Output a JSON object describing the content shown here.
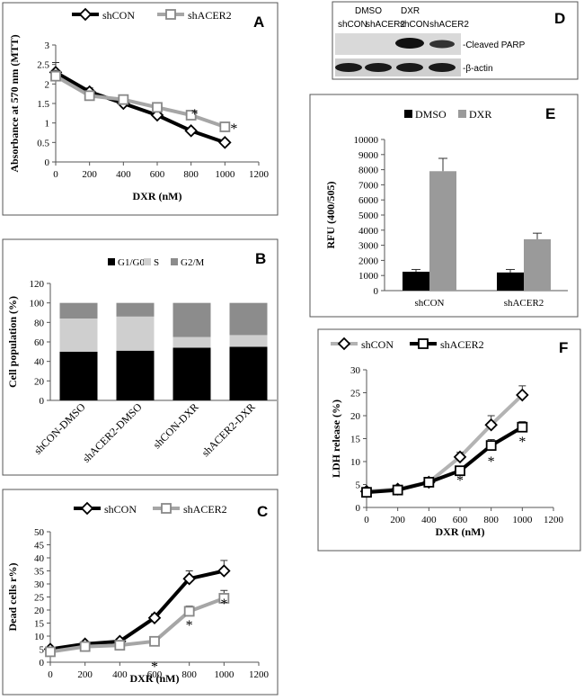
{
  "chart_data": [
    {
      "id": "A",
      "type": "line",
      "panel_label": "A",
      "x": [
        0,
        200,
        400,
        600,
        800,
        1000
      ],
      "series": [
        {
          "name": "shCON",
          "values": [
            2.3,
            1.8,
            1.5,
            1.2,
            0.8,
            0.5
          ],
          "errors": [
            0.25,
            0.1,
            0.07,
            0.05,
            0.04,
            0.03
          ],
          "color": "#000000",
          "marker": "diamond"
        },
        {
          "name": "shACER2",
          "values": [
            2.2,
            1.7,
            1.6,
            1.4,
            1.2,
            0.9
          ],
          "errors": [
            0.15,
            0.1,
            0.07,
            0.05,
            0.04,
            0.03
          ],
          "color": "#a6a6a6",
          "marker": "square"
        }
      ],
      "xlabel": "DXR (nM)",
      "ylabel": "Absorbance at 570 nm (MTT)",
      "xlim": [
        0,
        1200
      ],
      "ylim": [
        0,
        3
      ],
      "xticks": [
        "0",
        "200",
        "400",
        "600",
        "800",
        "1000",
        "1200"
      ],
      "yticks": [
        "0",
        "0.5",
        "1",
        "1.5",
        "2",
        "2.5",
        "3"
      ],
      "significance": [
        {
          "x": 800,
          "text": "*"
        },
        {
          "x": 1000,
          "text": "*"
        }
      ]
    },
    {
      "id": "B",
      "type": "stacked-bar",
      "panel_label": "B",
      "categories": [
        "shCON-DMSO",
        "shACER2-DMSO",
        "shCON-DXR",
        "shACER2-DXR"
      ],
      "series": [
        {
          "name": "G1/G0",
          "values": [
            50,
            51,
            54,
            55
          ],
          "color": "#000000"
        },
        {
          "name": "S",
          "values": [
            34,
            35,
            11,
            12
          ],
          "color": "#cfcfcf"
        },
        {
          "name": "G2/M",
          "values": [
            16,
            14,
            35,
            33
          ],
          "color": "#8c8c8c"
        }
      ],
      "ylabel": "Cell population (%)",
      "ylim": [
        0,
        120
      ],
      "yticks": [
        "0",
        "20",
        "40",
        "60",
        "80",
        "100",
        "120"
      ]
    },
    {
      "id": "C",
      "type": "line",
      "panel_label": "C",
      "x": [
        0,
        200,
        400,
        600,
        800,
        1000
      ],
      "series": [
        {
          "name": "shCON",
          "values": [
            5,
            7,
            8,
            17,
            32,
            35
          ],
          "errors": [
            1,
            1,
            1,
            1.5,
            3,
            4
          ],
          "color": "#000000",
          "marker": "diamond"
        },
        {
          "name": "shACER2",
          "values": [
            4,
            6,
            6.5,
            8,
            19.5,
            24.5
          ],
          "errors": [
            1,
            1,
            1,
            1,
            2,
            3
          ],
          "color": "#a6a6a6",
          "marker": "square"
        }
      ],
      "xlabel": "DXR (nM)",
      "ylabel": "Dead cells r%)",
      "xlim": [
        0,
        1200
      ],
      "ylim": [
        0,
        50
      ],
      "xticks": [
        "0",
        "200",
        "400",
        "600",
        "800",
        "1000",
        "1200"
      ],
      "yticks": [
        "0",
        "5",
        "10",
        "15",
        "20",
        "25",
        "30",
        "35",
        "40",
        "45",
        "50"
      ],
      "significance": [
        {
          "x": 600,
          "text": "*"
        },
        {
          "x": 800,
          "text": "*"
        },
        {
          "x": 1000,
          "text": "*"
        }
      ]
    },
    {
      "id": "D",
      "type": "western-blot",
      "panel_label": "D",
      "group_labels": [
        "DMSO",
        "DXR"
      ],
      "lane_labels": [
        "shCON",
        "shACER2",
        "shCON",
        "shACER2"
      ],
      "band_labels": [
        "-Cleaved PARP",
        "-β-actin"
      ]
    },
    {
      "id": "E",
      "type": "bar",
      "panel_label": "E",
      "categories": [
        "shCON",
        "shACER2"
      ],
      "series": [
        {
          "name": "DMSO",
          "values": [
            1250,
            1200
          ],
          "errors": [
            150,
            200
          ],
          "color": "#000000"
        },
        {
          "name": "DXR",
          "values": [
            7900,
            3400
          ],
          "errors": [
            850,
            400
          ],
          "color": "#9a9a9a"
        }
      ],
      "ylabel": "RFU (400/505)",
      "ylim": [
        0,
        10000
      ],
      "yticks": [
        "0",
        "1000",
        "2000",
        "3000",
        "4000",
        "5000",
        "6000",
        "7000",
        "8000",
        "9000",
        "10000"
      ]
    },
    {
      "id": "F",
      "type": "line",
      "panel_label": "F",
      "x": [
        0,
        200,
        400,
        600,
        800,
        1000
      ],
      "series": [
        {
          "name": "shCON",
          "values": [
            3.5,
            4,
            5.5,
            11,
            18,
            24.5
          ],
          "errors": [
            0.5,
            0.5,
            0.5,
            1,
            2,
            2
          ],
          "color": "#b3b3b3",
          "marker": "diamond"
        },
        {
          "name": "shACER2",
          "values": [
            3.3,
            3.8,
            5.5,
            8,
            13.5,
            17.5
          ],
          "errors": [
            0.5,
            0.5,
            0.5,
            0.7,
            1.3,
            1.2
          ],
          "color": "#000000",
          "marker": "square"
        }
      ],
      "xlabel": "DXR (nM)",
      "ylabel": "LDH release (%)",
      "xlim": [
        0,
        1200
      ],
      "ylim": [
        0,
        30
      ],
      "xticks": [
        "0",
        "200",
        "400",
        "600",
        "800",
        "1000",
        "1200"
      ],
      "yticks": [
        "0",
        "5",
        "10",
        "15",
        "20",
        "25",
        "30"
      ],
      "significance": [
        {
          "x": 600,
          "text": "*"
        },
        {
          "x": 800,
          "text": "*"
        },
        {
          "x": 1000,
          "text": "*"
        }
      ]
    }
  ]
}
